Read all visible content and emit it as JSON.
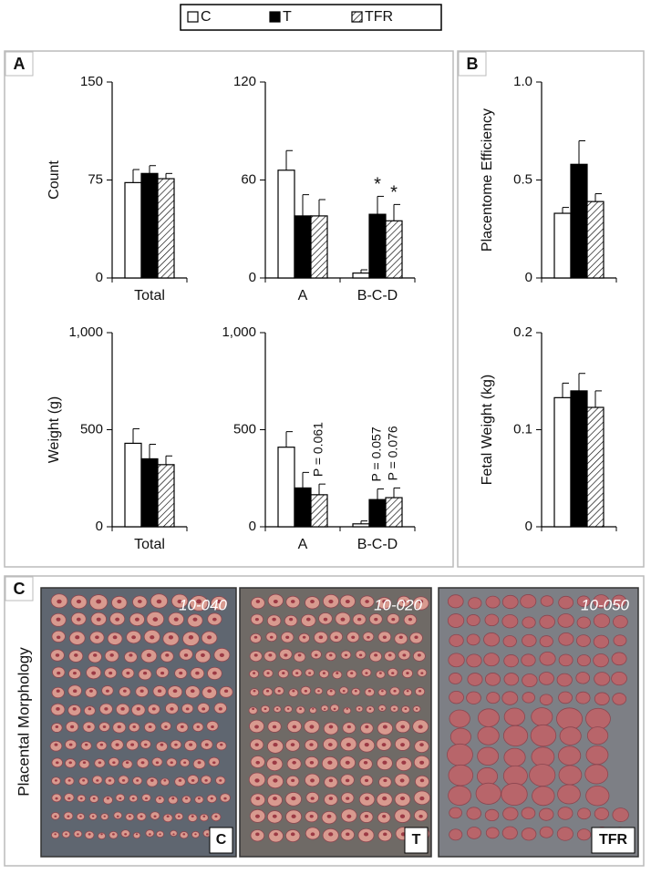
{
  "legend": [
    {
      "name": "C",
      "color": "#ffffff"
    },
    {
      "name": "T",
      "color": "#000000"
    },
    {
      "name": "TFR",
      "color": "#ffffff",
      "pattern": "diagonal"
    }
  ],
  "panels": {
    "a": "A",
    "b": "B",
    "c": "C"
  },
  "chart_data": [
    {
      "type": "bar",
      "ylabel": "Count",
      "categories": [
        "Total"
      ],
      "ylim": [
        0,
        150
      ],
      "yticks": [
        0,
        75,
        150
      ],
      "series": [
        {
          "values": [
            73
          ],
          "errors": [
            10
          ]
        },
        {
          "values": [
            80
          ],
          "errors": [
            6
          ]
        },
        {
          "values": [
            76
          ],
          "errors": [
            4
          ]
        }
      ]
    },
    {
      "type": "bar",
      "categories": [
        "A",
        "B-C-D"
      ],
      "ylim": [
        0,
        120
      ],
      "yticks": [
        0,
        60,
        120
      ],
      "series": [
        {
          "values": [
            66,
            3
          ],
          "errors": [
            12,
            2
          ]
        },
        {
          "values": [
            38,
            39
          ],
          "errors": [
            13,
            11
          ],
          "labels": [
            null,
            "*"
          ]
        },
        {
          "values": [
            38,
            35
          ],
          "errors": [
            10,
            10
          ],
          "labels": [
            null,
            "*"
          ]
        }
      ]
    },
    {
      "type": "bar",
      "ylabel": "Weight (g)",
      "categories": [
        "Total"
      ],
      "ylim": [
        0,
        1000
      ],
      "yticks": [
        0,
        500,
        {
          "value": 1000,
          "label": "1,000"
        }
      ],
      "series": [
        {
          "values": [
            430
          ],
          "errors": [
            75
          ]
        },
        {
          "values": [
            350
          ],
          "errors": [
            75
          ]
        },
        {
          "values": [
            320
          ],
          "errors": [
            45
          ]
        }
      ]
    },
    {
      "type": "bar",
      "categories": [
        "A",
        "B-C-D"
      ],
      "ylim": [
        0,
        1000
      ],
      "yticks": [
        0,
        500,
        {
          "value": 1000,
          "label": "1,000"
        }
      ],
      "series": [
        {
          "values": [
            410,
            15
          ],
          "errors": [
            80,
            15
          ]
        },
        {
          "values": [
            200,
            140
          ],
          "errors": [
            80,
            55
          ],
          "labels": [
            null,
            "P = 0.057"
          ]
        },
        {
          "values": [
            165,
            150
          ],
          "errors": [
            55,
            50
          ],
          "labels": [
            "P = 0.061",
            "P = 0.076"
          ]
        }
      ]
    },
    {
      "type": "bar",
      "ylabel": "Placentome Efficiency",
      "categories": [
        null
      ],
      "ylim": [
        0,
        1
      ],
      "yticks": [
        0,
        0.5,
        {
          "value": 1,
          "label": "1.0"
        }
      ],
      "series": [
        {
          "values": [
            0.33
          ],
          "errors": [
            0.03
          ]
        },
        {
          "values": [
            0.58
          ],
          "errors": [
            0.12
          ]
        },
        {
          "values": [
            0.39
          ],
          "errors": [
            0.04
          ]
        }
      ]
    },
    {
      "type": "bar",
      "ylabel": "Fetal Weight (kg)",
      "categories": [
        null
      ],
      "ylim": [
        0,
        0.2
      ],
      "yticks": [
        0,
        0.1,
        0.2
      ],
      "series": [
        {
          "values": [
            0.133
          ],
          "errors": [
            0.015
          ]
        },
        {
          "values": [
            0.14
          ],
          "errors": [
            0.018
          ]
        },
        {
          "values": [
            0.123
          ],
          "errors": [
            0.017
          ]
        }
      ]
    }
  ],
  "photos": {
    "ylabel": "Placental Morphology",
    "items": [
      {
        "id": "10-040",
        "group": "C"
      },
      {
        "id": "10-020",
        "group": "T"
      },
      {
        "id": "10-050",
        "group": "TFR"
      }
    ]
  }
}
